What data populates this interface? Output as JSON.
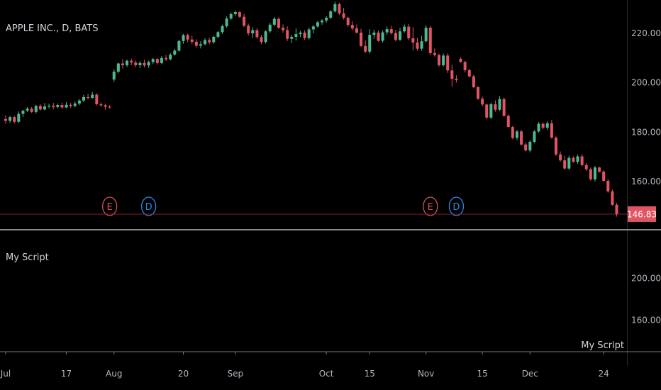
{
  "header": {
    "symbol_title": "APPLE INC., D, BATS"
  },
  "colors": {
    "background": "#000000",
    "up": "#4fb891",
    "down": "#e05563",
    "earnings": "#d0505a",
    "dividend": "#2f86e0",
    "divider": "#8a8a8a",
    "price_line": "#7a1f2b"
  },
  "chart_data": [
    {
      "type": "candlestick",
      "title": "APPLE INC., D, BATS",
      "y_axis_ticks": [
        "220.00",
        "200.00",
        "180.00",
        "160.00"
      ],
      "y_ticks_values": [
        220,
        200,
        180,
        160
      ],
      "ylim": [
        140.5,
        233.5
      ],
      "last_price": 146.83,
      "last_price_label": "146.83",
      "x_axis_labels": [
        "Jul",
        "17",
        "Aug",
        "20",
        "Sep",
        "Oct",
        "15",
        "Nov",
        "15",
        "Dec",
        "24"
      ],
      "x_axis_label_index": [
        0,
        14,
        25,
        41,
        53,
        74,
        84,
        97,
        110,
        121,
        138
      ],
      "events": [
        {
          "type": "earnings",
          "label": "E",
          "index": 24
        },
        {
          "type": "dividend",
          "label": "D",
          "index": 33
        },
        {
          "type": "earnings",
          "label": "E",
          "index": 98
        },
        {
          "type": "dividend",
          "label": "D",
          "index": 104
        }
      ],
      "ohlc": [
        [
          185.3,
          186.9,
          183.4,
          184.6
        ],
        [
          184.6,
          186.6,
          183.8,
          186.1
        ],
        [
          186.1,
          186.6,
          183.5,
          184.2
        ],
        [
          184.2,
          188.4,
          183.7,
          187.4
        ],
        [
          187.4,
          189.0,
          186.2,
          188.7
        ],
        [
          188.7,
          190.2,
          188.1,
          189.5
        ],
        [
          189.5,
          190.2,
          187.8,
          188.2
        ],
        [
          188.2,
          191.1,
          187.5,
          190.6
        ],
        [
          190.6,
          191.3,
          188.7,
          189.2
        ],
        [
          189.2,
          191.8,
          188.8,
          190.4
        ],
        [
          190.4,
          191.5,
          189.6,
          190.7
        ],
        [
          190.7,
          191.9,
          189.2,
          190.2
        ],
        [
          190.2,
          191.6,
          189.6,
          191.0
        ],
        [
          191.0,
          192.0,
          189.5,
          190.0
        ],
        [
          190.0,
          192.2,
          189.7,
          191.1
        ],
        [
          191.1,
          191.9,
          189.8,
          190.6
        ],
        [
          190.6,
          192.5,
          190.1,
          191.6
        ],
        [
          191.6,
          193.4,
          190.9,
          192.8
        ],
        [
          192.8,
          195.2,
          192.2,
          194.2
        ],
        [
          194.2,
          195.5,
          193.2,
          193.9
        ],
        [
          193.9,
          196.3,
          193.5,
          195.2
        ],
        [
          195.2,
          195.8,
          190.8,
          191.3
        ],
        [
          191.3,
          192.1,
          190.2,
          190.9
        ],
        [
          190.9,
          191.5,
          189.1,
          190.3
        ],
        [
          190.3,
          191.0,
          189.5,
          190.0
        ],
        [
          201.3,
          205.5,
          200.4,
          204.5
        ],
        [
          204.5,
          208.1,
          203.8,
          207.8
        ],
        [
          207.8,
          209.5,
          205.8,
          207.1
        ],
        [
          207.1,
          209.4,
          206.4,
          208.9
        ],
        [
          208.9,
          209.8,
          207.1,
          208.2
        ],
        [
          208.2,
          209.0,
          206.3,
          207.1
        ],
        [
          207.1,
          208.8,
          206.0,
          208.0
        ],
        [
          208.0,
          209.3,
          206.2,
          207.0
        ],
        [
          207.0,
          209.0,
          206.0,
          208.4
        ],
        [
          208.4,
          210.1,
          207.6,
          209.6
        ],
        [
          209.6,
          210.0,
          207.3,
          208.0
        ],
        [
          208.0,
          210.8,
          207.5,
          210.0
        ],
        [
          210.0,
          211.2,
          208.8,
          209.5
        ],
        [
          209.5,
          212.0,
          209.0,
          211.4
        ],
        [
          211.4,
          213.8,
          210.9,
          213.0
        ],
        [
          213.0,
          217.4,
          212.6,
          216.9
        ],
        [
          216.9,
          219.8,
          215.8,
          219.3
        ],
        [
          219.3,
          219.9,
          216.4,
          217.5
        ],
        [
          217.5,
          219.0,
          215.6,
          216.6
        ],
        [
          216.6,
          217.6,
          214.2,
          215.0
        ],
        [
          215.0,
          216.8,
          213.9,
          215.6
        ],
        [
          215.6,
          218.0,
          215.2,
          217.3
        ],
        [
          217.3,
          218.2,
          215.6,
          216.4
        ],
        [
          216.4,
          219.0,
          215.8,
          218.6
        ],
        [
          218.6,
          221.0,
          218.0,
          220.5
        ],
        [
          220.5,
          223.5,
          219.8,
          222.9
        ],
        [
          222.9,
          226.8,
          222.3,
          226.0
        ],
        [
          226.0,
          228.5,
          225.4,
          227.8
        ],
        [
          227.8,
          229.2,
          227.0,
          228.6
        ],
        [
          228.6,
          229.0,
          226.3,
          226.7
        ],
        [
          226.7,
          227.9,
          222.6,
          223.1
        ],
        [
          223.1,
          223.9,
          219.0,
          220.0
        ],
        [
          220.0,
          222.5,
          218.1,
          221.3
        ],
        [
          221.3,
          222.2,
          217.8,
          218.5
        ],
        [
          218.5,
          219.3,
          215.6,
          216.5
        ],
        [
          216.5,
          221.3,
          215.9,
          220.8
        ],
        [
          220.8,
          224.2,
          220.2,
          223.5
        ],
        [
          223.5,
          226.6,
          222.8,
          225.9
        ],
        [
          225.9,
          226.4,
          221.8,
          222.3
        ],
        [
          222.3,
          223.6,
          220.3,
          221.3
        ],
        [
          221.3,
          222.8,
          216.9,
          217.8
        ],
        [
          217.8,
          219.4,
          216.1,
          218.6
        ],
        [
          218.6,
          222.0,
          217.1,
          219.7
        ],
        [
          219.7,
          221.1,
          218.5,
          220.3
        ],
        [
          220.3,
          221.3,
          217.4,
          218.1
        ],
        [
          218.1,
          222.4,
          217.5,
          221.6
        ],
        [
          221.6,
          223.3,
          220.0,
          222.8
        ],
        [
          222.8,
          225.0,
          222.3,
          224.5
        ],
        [
          224.5,
          225.7,
          223.5,
          225.2
        ],
        [
          225.2,
          227.0,
          224.3,
          226.3
        ],
        [
          226.3,
          229.4,
          225.8,
          228.9
        ],
        [
          228.9,
          232.8,
          228.4,
          231.8
        ],
        [
          231.8,
          232.4,
          227.4,
          228.1
        ],
        [
          228.1,
          230.3,
          225.6,
          226.3
        ],
        [
          226.3,
          226.8,
          222.7,
          223.4
        ],
        [
          223.4,
          224.9,
          221.3,
          222.0
        ],
        [
          222.0,
          223.6,
          219.9,
          220.3
        ],
        [
          220.3,
          221.8,
          214.5,
          214.9
        ],
        [
          214.9,
          217.2,
          212.0,
          212.6
        ],
        [
          212.6,
          221.7,
          211.8,
          219.4
        ],
        [
          219.4,
          221.5,
          217.8,
          220.3
        ],
        [
          220.3,
          221.2,
          216.6,
          217.0
        ],
        [
          217.0,
          221.2,
          216.2,
          220.4
        ],
        [
          220.4,
          222.8,
          219.3,
          221.7
        ],
        [
          221.7,
          223.0,
          219.5,
          220.1
        ],
        [
          220.1,
          221.4,
          216.7,
          217.4
        ],
        [
          217.4,
          222.2,
          216.9,
          220.8
        ],
        [
          220.8,
          223.6,
          220.3,
          222.7
        ],
        [
          222.7,
          223.8,
          217.2,
          218.0
        ],
        [
          218.0,
          222.5,
          213.2,
          216.3
        ],
        [
          216.3,
          218.2,
          213.0,
          213.8
        ],
        [
          213.8,
          219.0,
          212.9,
          216.8
        ],
        [
          216.8,
          223.4,
          216.3,
          222.3
        ],
        [
          222.3,
          223.0,
          211.2,
          212.0
        ],
        [
          212.0,
          213.9,
          210.6,
          211.2
        ],
        [
          211.2,
          211.8,
          206.5,
          207.1
        ],
        [
          207.1,
          211.8,
          206.6,
          211.0
        ],
        [
          211.0,
          211.9,
          204.0,
          205.0
        ],
        [
          205.0,
          207.3,
          198.4,
          201.6
        ],
        [
          201.6,
          203.0,
          200.1,
          201.1
        ],
        [
          209.7,
          210.4,
          208.1,
          208.4
        ],
        [
          208.4,
          208.9,
          204.2,
          205.1
        ],
        [
          205.1,
          205.6,
          202.2,
          202.6
        ],
        [
          202.6,
          203.2,
          197.9,
          198.2
        ],
        [
          198.2,
          198.7,
          193.1,
          193.5
        ],
        [
          193.5,
          194.4,
          190.4,
          191.2
        ],
        [
          191.2,
          191.6,
          185.2,
          185.9
        ],
        [
          185.9,
          192.0,
          185.3,
          191.3
        ],
        [
          191.3,
          192.9,
          188.3,
          189.1
        ],
        [
          189.1,
          194.6,
          188.6,
          193.4
        ],
        [
          193.4,
          194.0,
          186.3,
          186.6
        ],
        [
          186.6,
          187.1,
          181.9,
          182.1
        ],
        [
          182.1,
          182.6,
          177.1,
          177.7
        ],
        [
          177.7,
          180.9,
          176.8,
          180.3
        ],
        [
          180.3,
          180.8,
          174.6,
          175.0
        ],
        [
          175.0,
          175.8,
          172.2,
          172.6
        ],
        [
          172.6,
          176.7,
          171.8,
          176.1
        ],
        [
          176.1,
          180.8,
          175.6,
          180.3
        ],
        [
          180.3,
          184.1,
          179.8,
          183.4
        ],
        [
          183.4,
          183.9,
          181.1,
          181.8
        ],
        [
          181.8,
          184.5,
          180.9,
          183.6
        ],
        [
          183.6,
          185.0,
          177.4,
          177.8
        ],
        [
          177.8,
          178.3,
          170.4,
          171.0
        ],
        [
          171.0,
          172.2,
          168.0,
          168.6
        ],
        [
          168.6,
          170.5,
          164.9,
          165.3
        ],
        [
          165.3,
          170.5,
          164.7,
          169.6
        ],
        [
          169.6,
          170.2,
          167.6,
          168.0
        ],
        [
          168.0,
          170.9,
          167.2,
          170.2
        ],
        [
          170.2,
          171.0,
          166.2,
          166.7
        ],
        [
          166.7,
          167.6,
          164.3,
          165.0
        ],
        [
          165.0,
          165.7,
          160.4,
          160.9
        ],
        [
          160.9,
          166.4,
          160.0,
          165.7
        ],
        [
          165.7,
          166.0,
          163.6,
          164.0
        ],
        [
          164.0,
          164.6,
          159.8,
          160.3
        ],
        [
          160.3,
          161.0,
          155.5,
          156.0
        ],
        [
          156.0,
          156.8,
          150.2,
          150.6
        ],
        [
          150.6,
          151.3,
          145.8,
          146.83
        ]
      ]
    },
    {
      "type": "line",
      "title": "My Script",
      "y_axis_ticks": [
        "200.0000",
        "160.0000"
      ],
      "y_ticks_values": [
        200,
        160
      ],
      "ylim": [
        130,
        245
      ],
      "values": [],
      "corner_label": "My Script"
    }
  ]
}
